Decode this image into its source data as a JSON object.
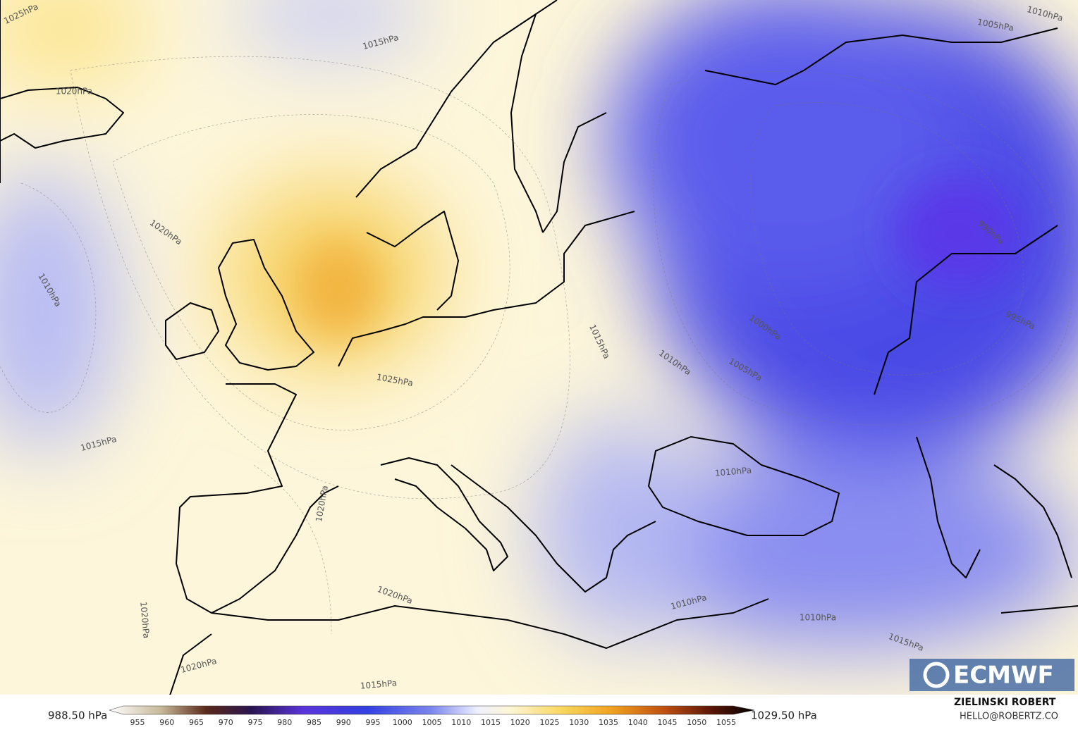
{
  "map": {
    "contour_labels": [
      "1025hPa",
      "1015hPa",
      "1005hPa",
      "1010hPa",
      "1020hPa",
      "1020hPa",
      "1010hPa",
      "990hPa",
      "995hPa",
      "1000hPa",
      "1005hPa",
      "1010hPa",
      "1015hPa",
      "1025hPa",
      "1015hPa",
      "1010hPa",
      "1020hPa",
      "1020hPa",
      "1010hPa",
      "1010hPa",
      "1015hPa",
      "1020hPa",
      "1020hPa",
      "1015hPa"
    ],
    "logo": "ECMWF"
  },
  "colorbar": {
    "min_label": "988.50 hPa",
    "max_label": "1029.50 hPa",
    "ticks": [
      955,
      960,
      965,
      970,
      975,
      980,
      985,
      990,
      995,
      1000,
      1005,
      1010,
      1015,
      1020,
      1025,
      1030,
      1035,
      1040,
      1045,
      1050,
      1055
    ]
  },
  "credits": {
    "author": "ZIELINSKI ROBERT",
    "contact": "HELLO@ROBERTZ.CO"
  }
}
